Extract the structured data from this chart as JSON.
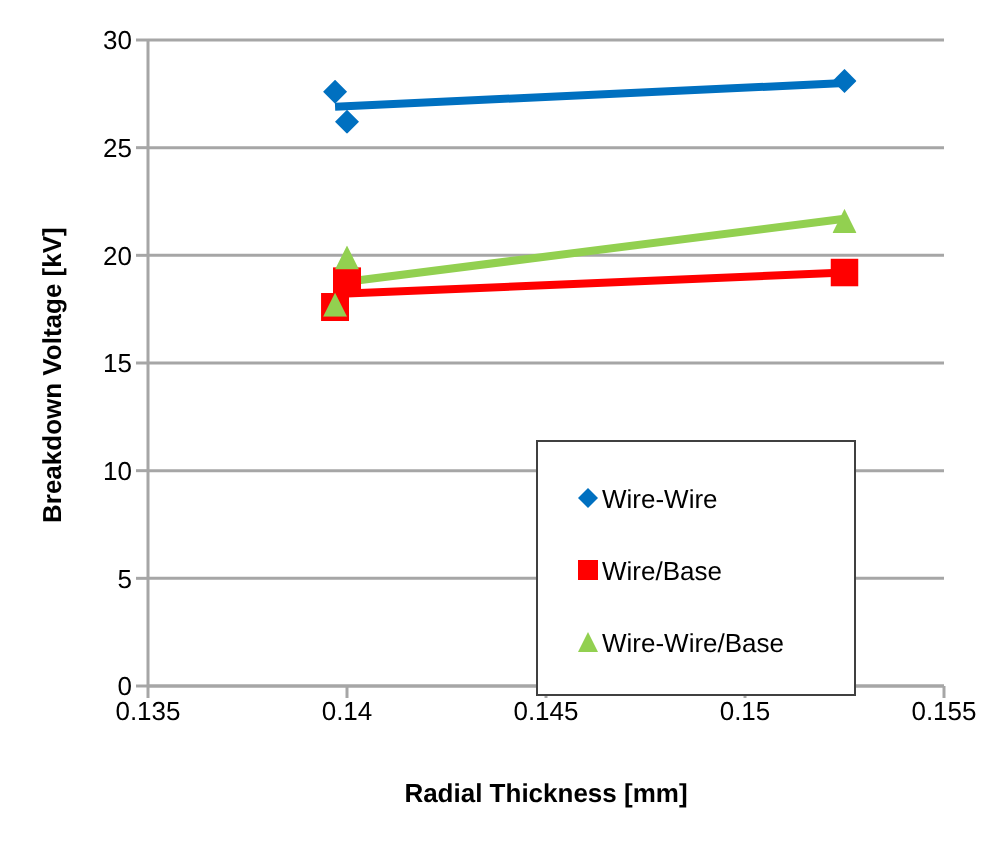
{
  "chart_data": {
    "type": "scatter",
    "xlabel": "Radial Thickness [mm]",
    "ylabel": "Breakdown Voltage [kV]",
    "xlim": [
      0.135,
      0.155
    ],
    "xticks": [
      0.135,
      0.14,
      0.145,
      0.15,
      0.155
    ],
    "ylim": [
      0,
      30
    ],
    "yticks": [
      0,
      5,
      10,
      15,
      20,
      25,
      30
    ],
    "grid": "y",
    "legend": "right",
    "series": [
      {
        "name": "Wire-Wire",
        "color": "#0070c0",
        "marker": "diamond",
        "x": [
          0.1397,
          0.14,
          0.1525
        ],
        "values": [
          27.6,
          26.2,
          28.1
        ]
      },
      {
        "name": "Wire/Base",
        "color": "#ff0000",
        "marker": "square",
        "x": [
          0.1397,
          0.14,
          0.1525
        ],
        "values": [
          17.6,
          18.8,
          19.2
        ]
      },
      {
        "name": "Wire-Wire/Base",
        "color": "#92d050",
        "marker": "triangle",
        "x": [
          0.1397,
          0.14,
          0.1525
        ],
        "values": [
          17.7,
          19.9,
          21.6
        ]
      },
      {
        "type": "line",
        "color": "#0070c0",
        "marker": "none",
        "x": [
          0.1397,
          0.1525
        ],
        "values": [
          26.9,
          28.0
        ]
      },
      {
        "type": "line",
        "color": "#ff0000",
        "marker": "none",
        "x": [
          0.1397,
          0.1525
        ],
        "values": [
          18.2,
          19.2
        ]
      },
      {
        "type": "line",
        "color": "#92d050",
        "marker": "none",
        "x": [
          0.1397,
          0.1525
        ],
        "values": [
          18.7,
          21.7
        ]
      }
    ]
  }
}
